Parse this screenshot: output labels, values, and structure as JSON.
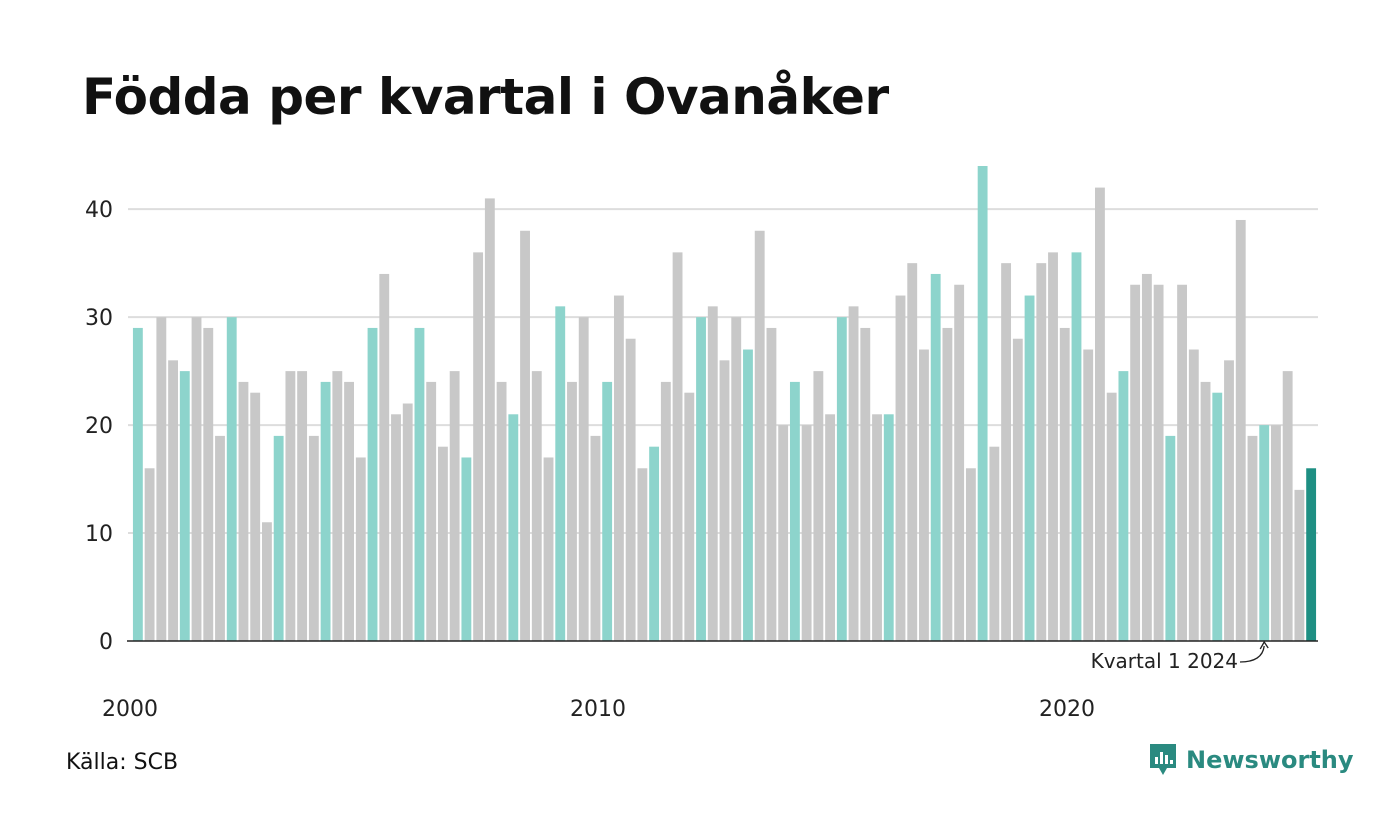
{
  "title": "Födda per kvartal i Ovanåker",
  "source": "Källa: SCB",
  "brand": "Newsworthy",
  "colors": {
    "q1": "#8dd4cc",
    "other": "#c8c8c8",
    "latest": "#1e8f83",
    "grid": "#dddddd",
    "axis": "#222222",
    "brand": "#2a8a80"
  },
  "chart_data": {
    "type": "bar",
    "title": "Födda per kvartal i Ovanåker",
    "xlabel": "",
    "ylabel": "",
    "ylim": [
      0,
      44
    ],
    "y_ticks": [
      0,
      10,
      20,
      30,
      40
    ],
    "x_tick_labels": [
      "2000",
      "2010",
      "2020"
    ],
    "grid": true,
    "start_year": 2000,
    "annotation": "Kvartal 1 2024",
    "values": [
      29,
      16,
      30,
      26,
      25,
      30,
      29,
      19,
      30,
      24,
      23,
      11,
      19,
      25,
      25,
      19,
      24,
      25,
      24,
      17,
      29,
      34,
      21,
      22,
      29,
      24,
      18,
      25,
      17,
      36,
      41,
      24,
      21,
      38,
      25,
      17,
      31,
      24,
      30,
      19,
      24,
      32,
      28,
      16,
      18,
      24,
      36,
      23,
      30,
      31,
      26,
      30,
      27,
      38,
      29,
      20,
      24,
      20,
      25,
      21,
      30,
      31,
      29,
      21,
      21,
      32,
      35,
      27,
      34,
      29,
      33,
      16,
      44,
      18,
      35,
      28,
      32,
      35,
      36,
      29,
      36,
      27,
      42,
      23,
      25,
      33,
      34,
      33,
      19,
      33,
      27,
      24,
      23,
      26,
      39,
      19,
      20,
      20,
      25,
      14,
      16
    ]
  }
}
